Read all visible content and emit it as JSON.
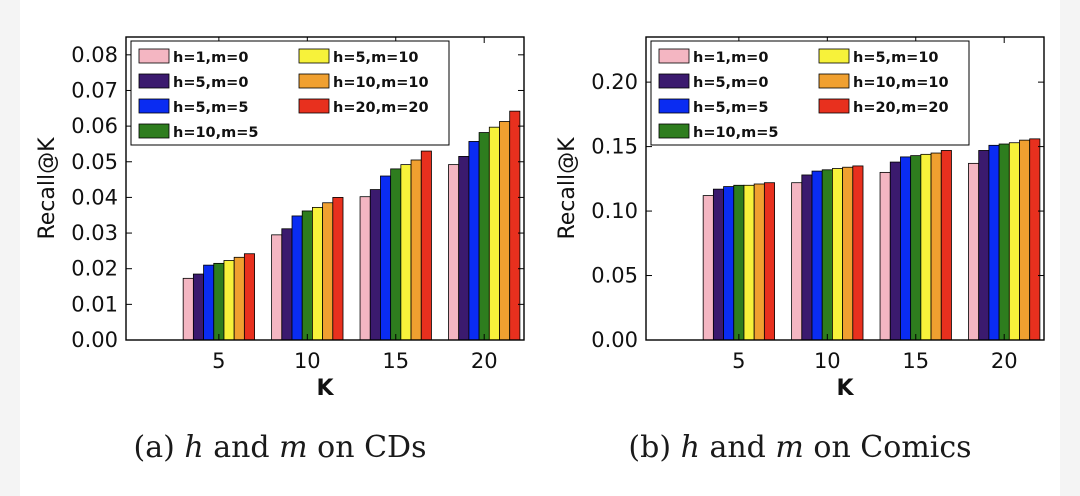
{
  "colors": [
    "#f4b6c2",
    "#3b1a6e",
    "#0a2cf2",
    "#2e7d1e",
    "#f7f23a",
    "#f0a030",
    "#e8301e"
  ],
  "legend_order": [
    0,
    4,
    1,
    5,
    2,
    6,
    3
  ],
  "chart_data": [
    {
      "type": "bar",
      "title": "",
      "xlabel": "K",
      "ylabel": "Recall@K",
      "categories": [
        "5",
        "10",
        "15",
        "20"
      ],
      "ylim": [
        0,
        0.085
      ],
      "yticks": [
        "0.00",
        "0.01",
        "0.02",
        "0.03",
        "0.04",
        "0.05",
        "0.06",
        "0.07",
        "0.08"
      ],
      "ytick_values": [
        0,
        0.01,
        0.02,
        0.03,
        0.04,
        0.05,
        0.06,
        0.07,
        0.08
      ],
      "legend_position": "top-left",
      "series": [
        {
          "name": "h=1,m=0",
          "values": [
            0.0173,
            0.0295,
            0.0402,
            0.0492
          ]
        },
        {
          "name": "h=5,m=0",
          "values": [
            0.0185,
            0.0312,
            0.0422,
            0.0515
          ]
        },
        {
          "name": "h=5,m=5",
          "values": [
            0.021,
            0.0348,
            0.046,
            0.0557
          ]
        },
        {
          "name": "h=10,m=5",
          "values": [
            0.0215,
            0.0362,
            0.048,
            0.0582
          ]
        },
        {
          "name": "h=5,m=10",
          "values": [
            0.0223,
            0.0372,
            0.0492,
            0.0597
          ]
        },
        {
          "name": "h=10,m=10",
          "values": [
            0.0232,
            0.0385,
            0.0505,
            0.0613
          ]
        },
        {
          "name": "h=20,m=20",
          "values": [
            0.0242,
            0.04,
            0.053,
            0.0642
          ]
        }
      ],
      "caption": {
        "prefix": "(a) ",
        "var1": "h",
        "mid": " and ",
        "var2": "m",
        "suffix": " on CDs"
      }
    },
    {
      "type": "bar",
      "title": "",
      "xlabel": "K",
      "ylabel": "Recall@K",
      "categories": [
        "5",
        "10",
        "15",
        "20"
      ],
      "ylim": [
        0,
        0.235
      ],
      "yticks": [
        "0.00",
        "0.05",
        "0.10",
        "0.15",
        "0.20"
      ],
      "ytick_values": [
        0,
        0.05,
        0.1,
        0.15,
        0.2
      ],
      "legend_position": "top-left",
      "series": [
        {
          "name": "h=1,m=0",
          "values": [
            0.112,
            0.122,
            0.13,
            0.137
          ]
        },
        {
          "name": "h=5,m=0",
          "values": [
            0.117,
            0.128,
            0.138,
            0.147
          ]
        },
        {
          "name": "h=5,m=5",
          "values": [
            0.119,
            0.131,
            0.142,
            0.151
          ]
        },
        {
          "name": "h=10,m=5",
          "values": [
            0.12,
            0.132,
            0.143,
            0.152
          ]
        },
        {
          "name": "h=5,m=10",
          "values": [
            0.12,
            0.133,
            0.144,
            0.153
          ]
        },
        {
          "name": "h=10,m=10",
          "values": [
            0.121,
            0.134,
            0.145,
            0.155
          ]
        },
        {
          "name": "h=20,m=20",
          "values": [
            0.122,
            0.135,
            0.147,
            0.156
          ]
        }
      ],
      "caption": {
        "prefix": "(b) ",
        "var1": "h",
        "mid": " and ",
        "var2": "m",
        "suffix": " on Comics"
      }
    }
  ]
}
